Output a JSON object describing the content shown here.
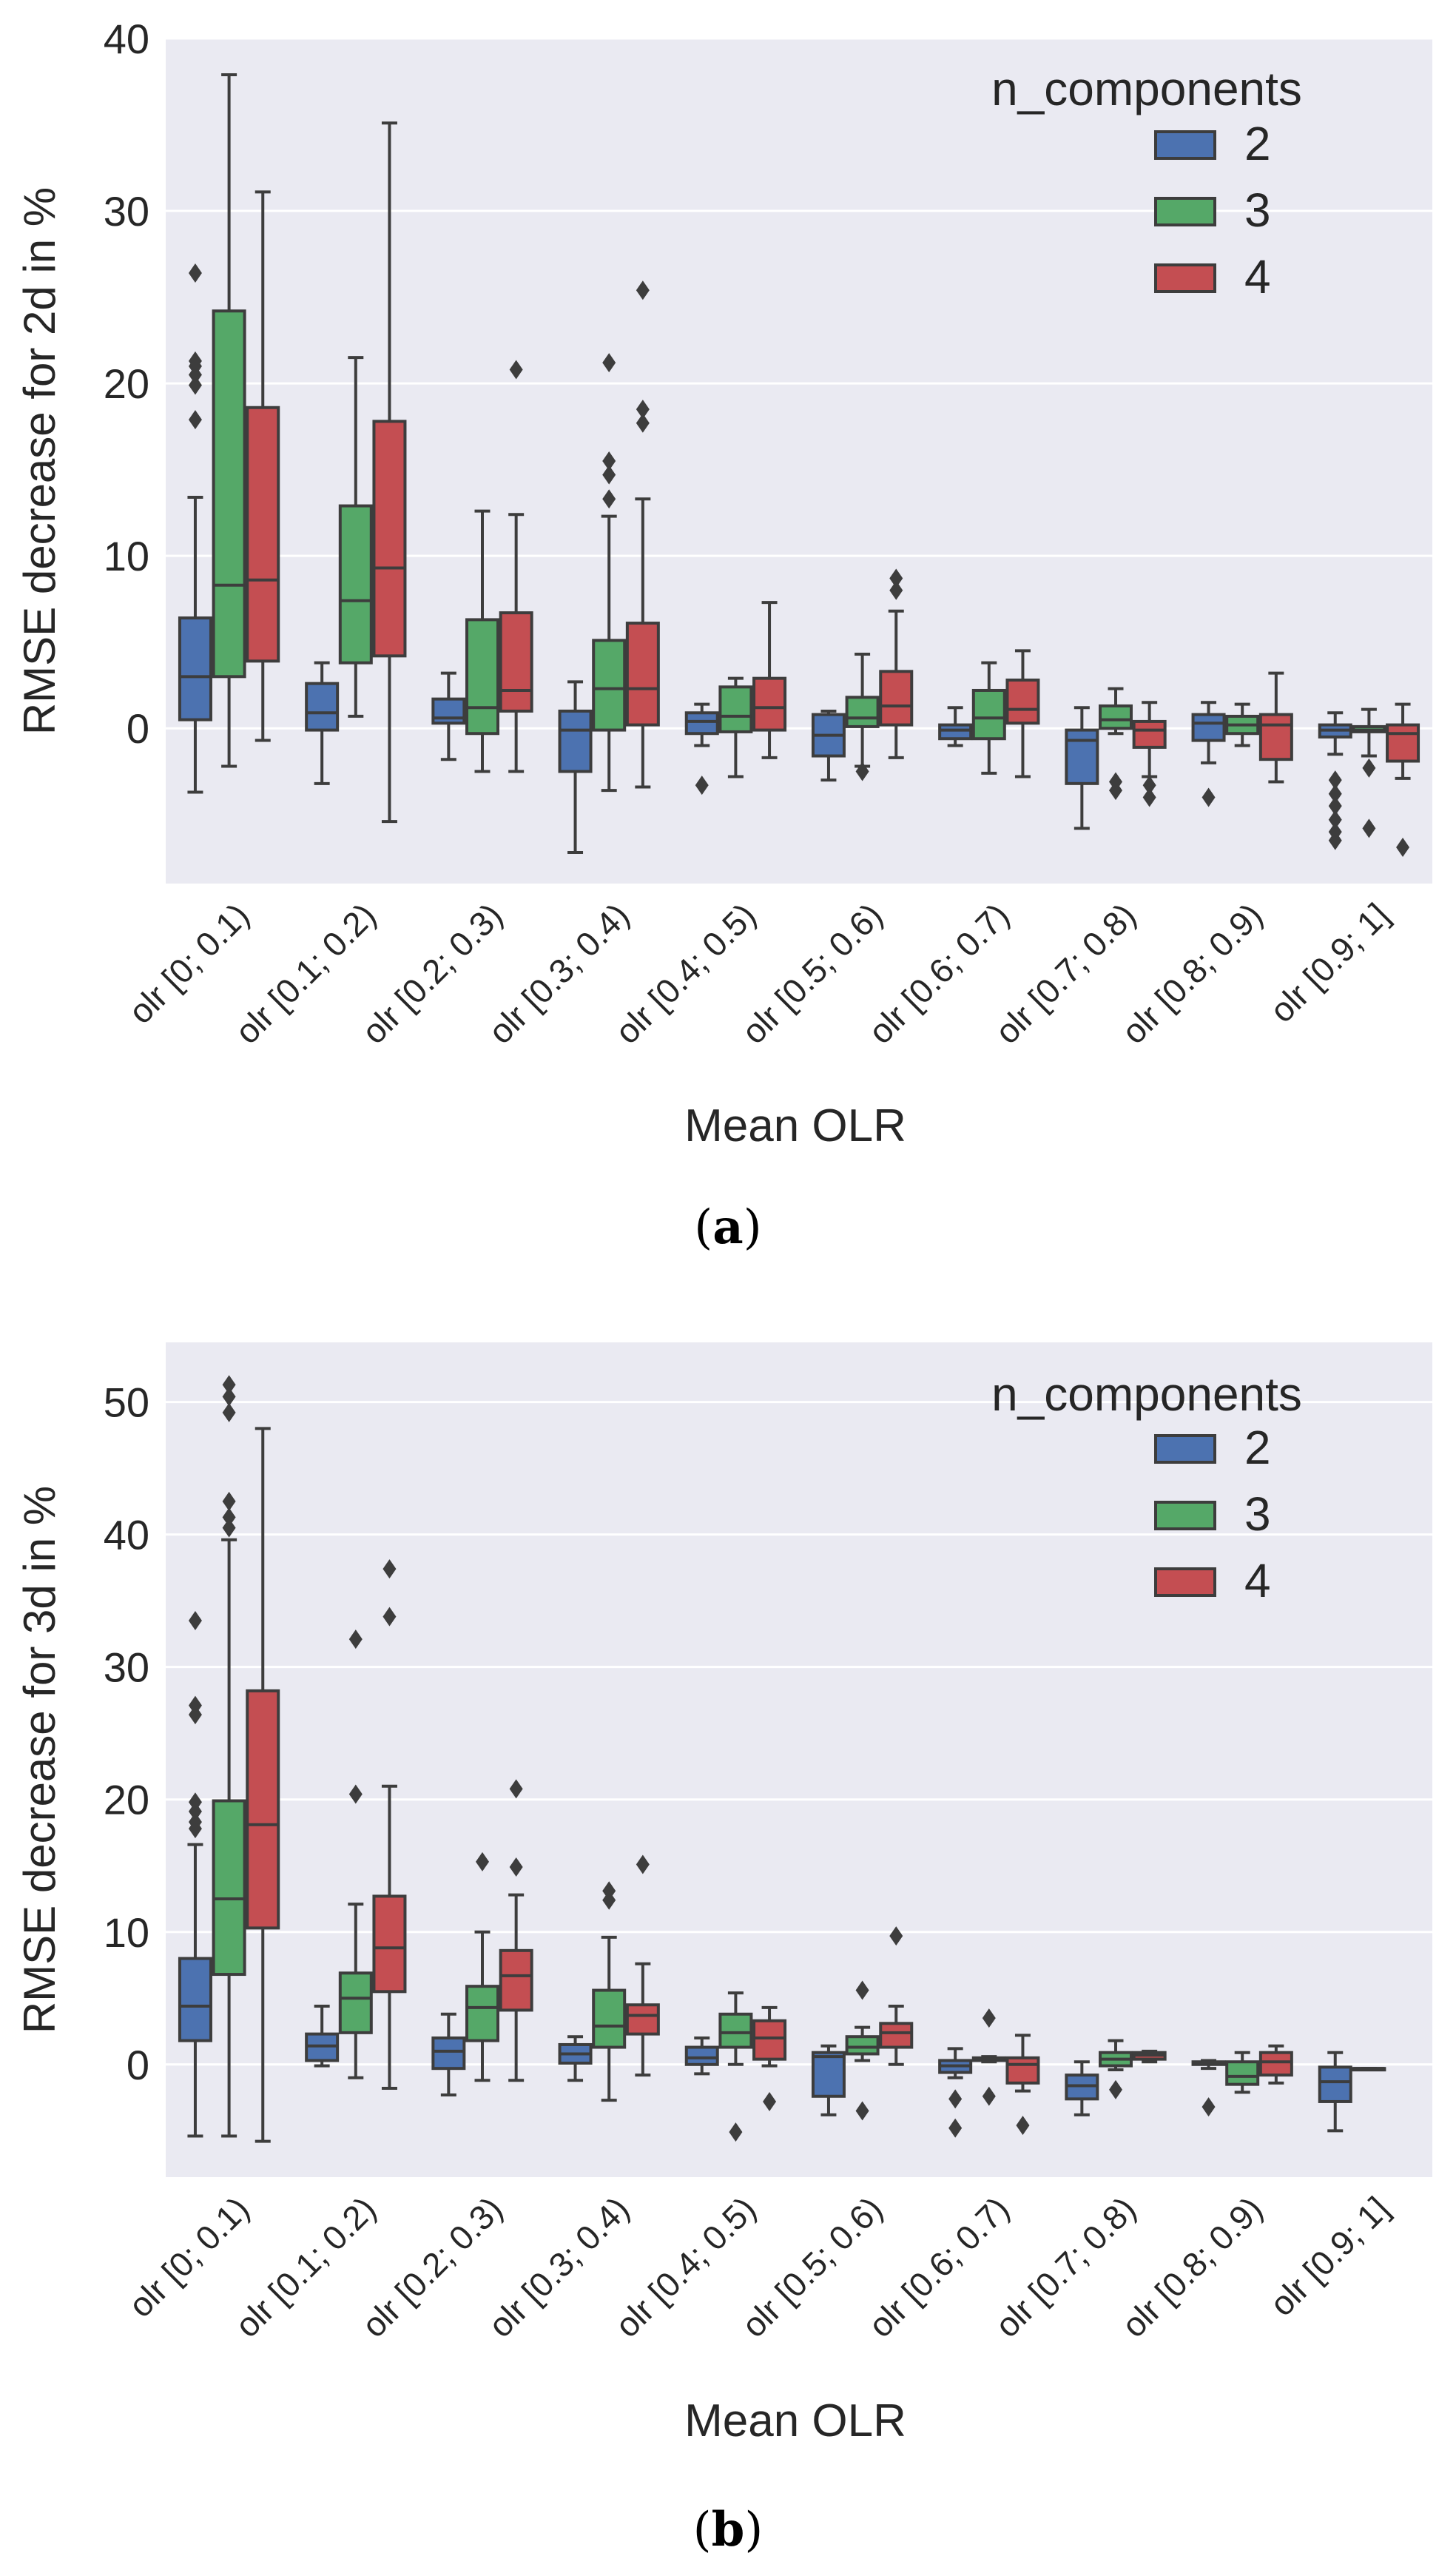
{
  "chart_data": [
    {
      "id": "a",
      "type": "box",
      "caption_label": "a",
      "xlabel": "Mean OLR",
      "ylabel": "RMSE decrease for 2d in %",
      "ylim": [
        -9,
        40
      ],
      "yticks": [
        0,
        10,
        20,
        30,
        40
      ],
      "grid": true,
      "legend": {
        "title": "n_components",
        "placement": "top-right",
        "entries": [
          "2",
          "3",
          "4"
        ]
      },
      "categories": [
        "olr [0; 0.1)",
        "olr [0.1; 0.2)",
        "olr [0.2; 0.3)",
        "olr [0.3; 0.4)",
        "olr [0.4; 0.5)",
        "olr [0.5; 0.6)",
        "olr [0.6; 0.7)",
        "olr [0.7; 0.8)",
        "olr [0.8; 0.9)",
        "olr [0.9; 1]"
      ],
      "series": [
        {
          "name": "2",
          "color": "#4c72b0",
          "boxes": [
            {
              "wlo": -3.7,
              "q1": 0.5,
              "med": 3.0,
              "q3": 6.4,
              "whi": 13.4,
              "out": [
                17.9,
                19.9,
                20.5,
                21.0,
                21.3,
                26.4
              ]
            },
            {
              "wlo": -3.2,
              "q1": -0.1,
              "med": 0.9,
              "q3": 2.6,
              "whi": 3.8,
              "out": []
            },
            {
              "wlo": -1.8,
              "q1": 0.3,
              "med": 0.6,
              "q3": 1.7,
              "whi": 3.2,
              "out": []
            },
            {
              "wlo": -7.2,
              "q1": -2.5,
              "med": -0.1,
              "q3": 1.0,
              "whi": 2.7,
              "out": []
            },
            {
              "wlo": -1.0,
              "q1": -0.3,
              "med": 0.4,
              "q3": 0.9,
              "whi": 1.4,
              "out": [
                -3.3
              ]
            },
            {
              "wlo": -3.0,
              "q1": -1.6,
              "med": -0.4,
              "q3": 0.8,
              "whi": 1.0,
              "out": []
            },
            {
              "wlo": -1.0,
              "q1": -0.6,
              "med": -0.1,
              "q3": 0.2,
              "whi": 1.2,
              "out": []
            },
            {
              "wlo": -5.8,
              "q1": -3.2,
              "med": -0.7,
              "q3": -0.1,
              "whi": 1.2,
              "out": []
            },
            {
              "wlo": -2.0,
              "q1": -0.7,
              "med": 0.3,
              "q3": 0.8,
              "whi": 1.5,
              "out": [
                -4.0
              ]
            },
            {
              "wlo": -1.5,
              "q1": -0.5,
              "med": -0.1,
              "q3": 0.2,
              "whi": 0.9,
              "out": [
                -3.0,
                -3.8,
                -4.5,
                -5.3,
                -6.0,
                -6.5
              ]
            }
          ]
        },
        {
          "name": "3",
          "color": "#55a868",
          "boxes": [
            {
              "wlo": -2.2,
              "q1": 3.0,
              "med": 8.3,
              "q3": 24.2,
              "whi": 37.9,
              "out": []
            },
            {
              "wlo": 0.7,
              "q1": 3.8,
              "med": 7.4,
              "q3": 12.9,
              "whi": 21.5,
              "out": []
            },
            {
              "wlo": -2.5,
              "q1": -0.3,
              "med": 1.2,
              "q3": 6.3,
              "whi": 12.6,
              "out": []
            },
            {
              "wlo": -3.6,
              "q1": -0.1,
              "med": 2.3,
              "q3": 5.1,
              "whi": 12.3,
              "out": [
                13.3,
                14.7,
                15.5,
                21.2
              ]
            },
            {
              "wlo": -2.8,
              "q1": -0.2,
              "med": 0.7,
              "q3": 2.4,
              "whi": 2.9,
              "out": []
            },
            {
              "wlo": -2.2,
              "q1": 0.1,
              "med": 0.6,
              "q3": 1.8,
              "whi": 4.3,
              "out": [
                -2.5
              ]
            },
            {
              "wlo": -2.6,
              "q1": -0.6,
              "med": 0.6,
              "q3": 2.2,
              "whi": 3.8,
              "out": []
            },
            {
              "wlo": -0.3,
              "q1": 0.0,
              "med": 0.5,
              "q3": 1.3,
              "whi": 2.3,
              "out": [
                -3.1,
                -3.6
              ]
            },
            {
              "wlo": -1.0,
              "q1": -0.3,
              "med": 0.2,
              "q3": 0.7,
              "whi": 1.4,
              "out": []
            },
            {
              "wlo": -1.6,
              "q1": -0.2,
              "med": -0.1,
              "q3": 0.1,
              "whi": 1.1,
              "out": [
                -2.3,
                -5.8
              ]
            }
          ]
        },
        {
          "name": "4",
          "color": "#c44e52",
          "boxes": [
            {
              "wlo": -0.7,
              "q1": 3.9,
              "med": 8.6,
              "q3": 18.6,
              "whi": 31.1,
              "out": []
            },
            {
              "wlo": -5.4,
              "q1": 4.2,
              "med": 9.3,
              "q3": 17.8,
              "whi": 35.1,
              "out": []
            },
            {
              "wlo": -2.5,
              "q1": 1.0,
              "med": 2.2,
              "q3": 6.7,
              "whi": 12.4,
              "out": [
                20.8
              ]
            },
            {
              "wlo": -3.4,
              "q1": 0.2,
              "med": 2.3,
              "q3": 6.1,
              "whi": 13.3,
              "out": [
                17.7,
                18.5,
                25.4
              ]
            },
            {
              "wlo": -1.7,
              "q1": -0.1,
              "med": 1.2,
              "q3": 2.9,
              "whi": 7.3,
              "out": []
            },
            {
              "wlo": -1.7,
              "q1": 0.2,
              "med": 1.3,
              "q3": 3.3,
              "whi": 6.8,
              "out": [
                8.0,
                8.7
              ]
            },
            {
              "wlo": -2.8,
              "q1": 0.3,
              "med": 1.1,
              "q3": 2.8,
              "whi": 4.5,
              "out": []
            },
            {
              "wlo": -2.8,
              "q1": -1.1,
              "med": -0.1,
              "q3": 0.4,
              "whi": 1.5,
              "out": [
                -3.3,
                -4.0
              ]
            },
            {
              "wlo": -3.1,
              "q1": -1.8,
              "med": 0.2,
              "q3": 0.8,
              "whi": 3.2,
              "out": []
            },
            {
              "wlo": -2.9,
              "q1": -1.9,
              "med": -0.3,
              "q3": 0.2,
              "whi": 1.4,
              "out": [
                -6.9
              ]
            }
          ]
        }
      ]
    },
    {
      "id": "b",
      "type": "box",
      "caption_label": "b",
      "xlabel": "Mean OLR",
      "ylabel": "RMSE decrease for 3d in %",
      "ylim": [
        -8.5,
        54.5
      ],
      "yticks": [
        0,
        10,
        20,
        30,
        40,
        50
      ],
      "grid": true,
      "legend": {
        "title": "n_components",
        "placement": "top-right",
        "entries": [
          "2",
          "3",
          "4"
        ]
      },
      "categories": [
        "olr [0; 0.1)",
        "olr [0.1; 0.2)",
        "olr [0.2; 0.3)",
        "olr [0.3; 0.4)",
        "olr [0.4; 0.5)",
        "olr [0.5; 0.6)",
        "olr [0.6; 0.7)",
        "olr [0.7; 0.8)",
        "olr [0.8; 0.9)",
        "olr [0.9; 1]"
      ],
      "series": [
        {
          "name": "2",
          "color": "#4c72b0",
          "boxes": [
            {
              "wlo": -5.4,
              "q1": 1.8,
              "med": 4.4,
              "q3": 8.0,
              "whi": 16.6,
              "out": [
                17.8,
                18.3,
                19.1,
                19.8,
                26.4,
                27.1,
                33.5
              ]
            },
            {
              "wlo": -0.1,
              "q1": 0.3,
              "med": 1.4,
              "q3": 2.3,
              "whi": 4.4,
              "out": []
            },
            {
              "wlo": -2.3,
              "q1": -0.3,
              "med": 1.0,
              "q3": 2.0,
              "whi": 3.8,
              "out": []
            },
            {
              "wlo": -1.2,
              "q1": 0.1,
              "med": 0.8,
              "q3": 1.5,
              "whi": 2.1,
              "out": []
            },
            {
              "wlo": -0.7,
              "q1": 0.0,
              "med": 0.5,
              "q3": 1.3,
              "whi": 2.0,
              "out": []
            },
            {
              "wlo": -3.8,
              "q1": -2.4,
              "med": 0.6,
              "q3": 0.9,
              "whi": 1.4,
              "out": []
            },
            {
              "wlo": -1.0,
              "q1": -0.6,
              "med": -0.1,
              "q3": 0.3,
              "whi": 1.2,
              "out": [
                -2.6,
                -4.8
              ]
            },
            {
              "wlo": -3.8,
              "q1": -2.6,
              "med": -1.6,
              "q3": -0.8,
              "whi": 0.2,
              "out": []
            },
            {
              "wlo": -0.3,
              "q1": 0.0,
              "med": 0.1,
              "q3": 0.2,
              "whi": 0.3,
              "out": [
                -3.2
              ]
            },
            {
              "wlo": -5.0,
              "q1": -2.8,
              "med": -1.3,
              "q3": -0.2,
              "whi": 0.9,
              "out": []
            }
          ]
        },
        {
          "name": "3",
          "color": "#55a868",
          "boxes": [
            {
              "wlo": -5.4,
              "q1": 6.8,
              "med": 12.5,
              "q3": 19.9,
              "whi": 39.6,
              "out": [
                40.5,
                41.3,
                42.5,
                49.2,
                50.4,
                51.3
              ]
            },
            {
              "wlo": -1.0,
              "q1": 2.4,
              "med": 5.0,
              "q3": 6.9,
              "whi": 12.1,
              "out": [
                20.4,
                32.1
              ]
            },
            {
              "wlo": -1.2,
              "q1": 1.8,
              "med": 4.3,
              "q3": 5.9,
              "whi": 10.0,
              "out": [
                15.3
              ]
            },
            {
              "wlo": -2.7,
              "q1": 1.3,
              "med": 2.9,
              "q3": 5.6,
              "whi": 9.6,
              "out": [
                12.4,
                13.1
              ]
            },
            {
              "wlo": 0.0,
              "q1": 1.3,
              "med": 2.4,
              "q3": 3.8,
              "whi": 5.4,
              "out": [
                -5.1
              ]
            },
            {
              "wlo": 0.3,
              "q1": 0.8,
              "med": 1.3,
              "q3": 2.1,
              "whi": 2.8,
              "out": [
                -3.5,
                5.6
              ]
            },
            {
              "wlo": 0.2,
              "q1": 0.3,
              "med": 0.4,
              "q3": 0.5,
              "whi": 0.6,
              "out": [
                -2.4,
                3.5
              ]
            },
            {
              "wlo": -0.4,
              "q1": -0.1,
              "med": 0.4,
              "q3": 0.9,
              "whi": 1.8,
              "out": [
                -1.9
              ]
            },
            {
              "wlo": -2.1,
              "q1": -1.5,
              "med": -0.9,
              "q3": 0.2,
              "whi": 0.9,
              "out": []
            },
            {
              "wlo": -0.3,
              "q1": -0.3,
              "med": -0.3,
              "q3": -0.3,
              "whi": -0.3,
              "out": []
            }
          ]
        },
        {
          "name": "4",
          "color": "#c44e52",
          "boxes": [
            {
              "wlo": -5.8,
              "q1": 10.3,
              "med": 18.1,
              "q3": 28.2,
              "whi": 48.0,
              "out": []
            },
            {
              "wlo": -1.8,
              "q1": 5.5,
              "med": 8.8,
              "q3": 12.7,
              "whi": 21.0,
              "out": [
                33.8,
                37.4
              ]
            },
            {
              "wlo": -1.2,
              "q1": 4.1,
              "med": 6.7,
              "q3": 8.6,
              "whi": 12.8,
              "out": [
                14.9,
                20.8
              ]
            },
            {
              "wlo": -0.8,
              "q1": 2.3,
              "med": 3.7,
              "q3": 4.5,
              "whi": 7.6,
              "out": [
                15.1
              ]
            },
            {
              "wlo": -0.1,
              "q1": 0.4,
              "med": 2.0,
              "q3": 3.3,
              "whi": 4.3,
              "out": [
                -2.8
              ]
            },
            {
              "wlo": 0.0,
              "q1": 1.3,
              "med": 2.4,
              "q3": 3.1,
              "whi": 4.4,
              "out": [
                9.7
              ]
            },
            {
              "wlo": -2.0,
              "q1": -1.4,
              "med": 0.0,
              "q3": 0.5,
              "whi": 2.2,
              "out": [
                -4.6
              ]
            },
            {
              "wlo": 0.2,
              "q1": 0.4,
              "med": 0.7,
              "q3": 0.9,
              "whi": 1.0,
              "out": []
            },
            {
              "wlo": -1.4,
              "q1": -0.8,
              "med": 0.2,
              "q3": 0.9,
              "whi": 1.4,
              "out": []
            },
            {
              "wlo": 0,
              "q1": 0,
              "med": 0,
              "q3": 0,
              "whi": 0,
              "out": [],
              "empty": true
            }
          ]
        }
      ]
    }
  ]
}
